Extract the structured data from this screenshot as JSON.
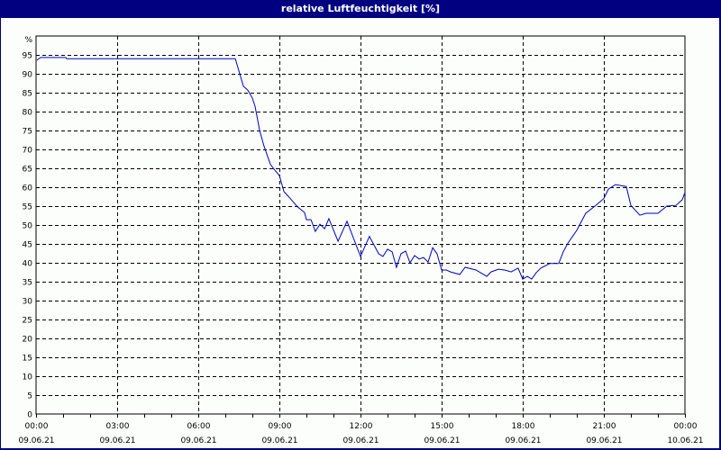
{
  "window": {
    "title": "relative Luftfeuchtigkeit [%]"
  },
  "colors": {
    "frame": "#000080",
    "background": "#fcfefc",
    "line": "#0000c0",
    "grid": "#000000"
  },
  "chart_data": {
    "type": "line",
    "title": "relative Luftfeuchtigkeit [%]",
    "xlabel": "",
    "ylabel": "%",
    "ylim": [
      0,
      100
    ],
    "xlim_hours": [
      0,
      24
    ],
    "grid": true,
    "y_ticks": [
      0,
      5,
      10,
      15,
      20,
      25,
      30,
      35,
      40,
      45,
      50,
      55,
      60,
      65,
      70,
      75,
      80,
      85,
      90,
      95
    ],
    "x_ticks": [
      {
        "hour": 0,
        "time": "00:00",
        "date": "09.06.21"
      },
      {
        "hour": 3,
        "time": "03:00",
        "date": "09.06.21"
      },
      {
        "hour": 6,
        "time": "06:00",
        "date": "09.06.21"
      },
      {
        "hour": 9,
        "time": "09:00",
        "date": "09.06.21"
      },
      {
        "hour": 12,
        "time": "12:00",
        "date": "09.06.21"
      },
      {
        "hour": 15,
        "time": "15:00",
        "date": "09.06.21"
      },
      {
        "hour": 18,
        "time": "18:00",
        "date": "09.06.21"
      },
      {
        "hour": 21,
        "time": "21:00",
        "date": "09.06.21"
      },
      {
        "hour": 24,
        "time": "00:00",
        "date": "10.06.21"
      }
    ],
    "series": [
      {
        "name": "relative Luftfeuchtigkeit",
        "x_hours": [
          0.03,
          0.17,
          1.1,
          1.13,
          7.37,
          7.67,
          7.83,
          8.0,
          8.1,
          8.27,
          8.43,
          8.67,
          8.83,
          9.0,
          9.17,
          9.33,
          9.67,
          9.93,
          10.0,
          10.17,
          10.33,
          10.5,
          10.67,
          10.83,
          11.17,
          11.5,
          12.0,
          12.33,
          12.67,
          12.83,
          13.0,
          13.17,
          13.33,
          13.5,
          13.67,
          13.83,
          14.0,
          14.17,
          14.33,
          14.5,
          14.67,
          14.83,
          15.0,
          15.17,
          15.33,
          15.67,
          15.87,
          16.27,
          16.67,
          16.83,
          17.1,
          17.33,
          17.57,
          17.83,
          18.0,
          18.17,
          18.33,
          18.5,
          18.67,
          19.0,
          19.33,
          19.5,
          19.67,
          20.0,
          20.33,
          20.67,
          21.0,
          21.17,
          21.43,
          21.83,
          22.0,
          22.33,
          22.57,
          23.0,
          23.33,
          23.67,
          23.9,
          24.0
        ],
        "values": [
          93.6,
          94.3,
          94.3,
          94.0,
          94.0,
          86.7,
          85.7,
          83.6,
          81.4,
          75.0,
          70.9,
          66.0,
          64.5,
          63.1,
          58.8,
          57.6,
          54.8,
          53.3,
          51.4,
          51.4,
          48.3,
          50.2,
          49.0,
          51.7,
          45.7,
          51.0,
          41.7,
          47.0,
          42.4,
          41.7,
          43.6,
          42.9,
          38.8,
          42.4,
          43.1,
          40.0,
          41.9,
          41.0,
          41.4,
          40.2,
          44.0,
          42.4,
          38.1,
          38.1,
          37.6,
          36.9,
          38.8,
          38.1,
          36.4,
          37.6,
          38.3,
          38.1,
          37.6,
          38.6,
          35.7,
          36.4,
          35.7,
          37.4,
          38.6,
          39.8,
          39.8,
          42.9,
          45.2,
          48.6,
          53.1,
          55.0,
          57.0,
          59.5,
          60.7,
          60.2,
          55.2,
          52.6,
          53.1,
          53.1,
          55.0,
          55.2,
          56.7,
          58.6
        ]
      }
    ]
  }
}
